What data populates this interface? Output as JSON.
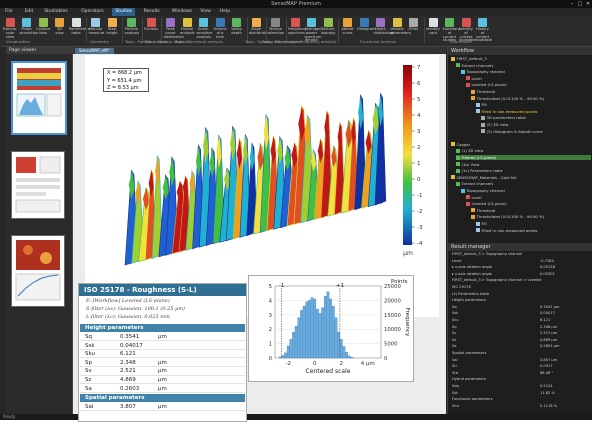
{
  "window": {
    "title": "SensoMAP Premium"
  },
  "menu": [
    "File",
    "Edit",
    "Studiables",
    "Operators",
    "Studies",
    "Results",
    "Windows",
    "View",
    "Help"
  ],
  "menu_active_index": 4,
  "ribbon": {
    "buttons": [
      {
        "label": "Pseudo-color view",
        "color": "#d9534f"
      },
      {
        "label": "Photo simulation",
        "color": "#5bc0de"
      },
      {
        "label": "Contour lines",
        "color": "#8fbf4f"
      },
      {
        "label": "3D view",
        "color": "#e6a23c"
      },
      {
        "label": "Parameters table",
        "color": "#e0e0e0"
      },
      {
        "label": "Manual measure",
        "color": "#9ec9e8"
      },
      {
        "label": "Step height",
        "color": "#f0ad4e"
      },
      {
        "label": "Particle analysis",
        "color": "#5cb85c"
      },
      {
        "label": "Furrows",
        "color": "#d9534f"
      },
      {
        "label": "Peak count distribution",
        "color": "#9b6fc6"
      },
      {
        "label": "Fractal analysis",
        "color": "#e0c040"
      },
      {
        "label": "Scale-sensitive analysis",
        "color": "#5bc0de"
      },
      {
        "label": "Volume of a hole",
        "color": "#337ab7"
      },
      {
        "label": "Valley depth",
        "color": "#5cb85c"
      },
      {
        "label": "Slope distribution",
        "color": "#f0ad4e"
      },
      {
        "label": "Texture direction",
        "color": "#888888"
      },
      {
        "label": "Frequency spectrum",
        "color": "#d9534f"
      },
      {
        "label": "Averaged power spectrum density",
        "color": "#5bc0de"
      },
      {
        "label": "Texture isotropy",
        "color": "#8fbf4f"
      },
      {
        "label": "Abbott curve",
        "color": "#e6a23c"
      },
      {
        "label": "Histogram",
        "color": "#337ab7"
      },
      {
        "label": "Depth distribution",
        "color": "#9b6fc6"
      },
      {
        "label": "Volume parameters",
        "color": "#e0c040"
      },
      {
        "label": "Other",
        "color": "#aaaaaa"
      },
      {
        "label": "Identity card",
        "color": "#e0e0e0"
      },
      {
        "label": "Summary of current studies",
        "color": "#5cb85c"
      },
      {
        "label": "Identity of current studiable",
        "color": "#d9534f"
      },
      {
        "label": "History of current studiable",
        "color": "#5bc0de"
      }
    ],
    "groups": [
      "Visualization",
      "Geometry",
      "Topo - Particle analysis",
      "Topo - Contour analysis",
      "Topo - Structural analysis",
      "Topo - Spacing ratio analysis",
      "Topo - Slope analysis",
      "Frequency analysis",
      "Functional analysis",
      "Information"
    ]
  },
  "page_viewer": {
    "title": "Page viewer"
  },
  "workspace": {
    "tabs": [
      "SensoMAP_eM*"
    ],
    "readout": {
      "x": "X = 868.2 µm",
      "y": "Y = 651.4 µm",
      "z": "Z = 8.53 µm"
    },
    "colorbar": {
      "unit": "µm",
      "ticks": [
        "7",
        "6",
        "5",
        "4",
        "3",
        "2",
        "1",
        "0",
        "-1",
        "-2",
        "-3",
        "-4"
      ]
    }
  },
  "iso_card": {
    "title": "ISO 25178 - Roughness (S-L)",
    "lines": [
      "F: [Workflow] Leveled (LS-plane)",
      "S-filter (λs): Gaussian, 100:1 (0.25 µm)",
      "L-filter (λc): Gaussian, 0.025 mm"
    ],
    "height_section": "Height parameters",
    "height_params": [
      {
        "name": "Sq",
        "value": "0.3541",
        "unit": "µm"
      },
      {
        "name": "Ssk",
        "value": "0.04017",
        "unit": ""
      },
      {
        "name": "Sku",
        "value": "6.121",
        "unit": ""
      },
      {
        "name": "Sp",
        "value": "2.348",
        "unit": "µm"
      },
      {
        "name": "Sv",
        "value": "2.521",
        "unit": "µm"
      },
      {
        "name": "Sz",
        "value": "4.869",
        "unit": "µm"
      },
      {
        "name": "Sa",
        "value": "0.2603",
        "unit": "µm"
      }
    ],
    "spatial_section": "Spatial parameters",
    "spatial_params": [
      {
        "name": "Sal",
        "value": "3.807",
        "unit": "µm"
      }
    ]
  },
  "histogram": {
    "title_right": "Points",
    "xlabel": "Centered scale",
    "ylabel": "Frequency",
    "ylabel_right": "Points",
    "marker_left": "-1",
    "marker_right": "+1",
    "x_ticks": [
      "-2",
      "0",
      "2",
      "4 µm"
    ],
    "y_ticks_right": [
      "25000",
      "20000",
      "15000",
      "10000",
      "5000",
      "0"
    ],
    "y_ticks_left": [
      "5",
      "4",
      "3",
      "2",
      "1",
      "0"
    ],
    "chart_data": {
      "type": "bar",
      "x_range": [
        -3,
        5
      ],
      "x": [
        -2.6,
        -2.4,
        -2.2,
        -2.0,
        -1.8,
        -1.6,
        -1.4,
        -1.2,
        -1.0,
        -0.8,
        -0.6,
        -0.4,
        -0.2,
        0.0,
        0.2,
        0.4,
        0.6,
        0.8,
        1.0,
        1.2,
        1.4,
        1.6,
        1.8,
        2.0,
        2.2,
        2.4,
        2.6,
        2.8
      ],
      "values": [
        400,
        900,
        1800,
        4200,
        6500,
        9000,
        11000,
        14000,
        16500,
        18000,
        19500,
        20000,
        21000,
        20500,
        17000,
        15500,
        17500,
        21500,
        23000,
        20500,
        18000,
        14000,
        9000,
        6500,
        4000,
        2000,
        800,
        300
      ],
      "ylim": [
        0,
        25000
      ]
    }
  },
  "workflow": {
    "title": "Workflow",
    "rows": [
      {
        "text": "FIRST_default_3",
        "depth": 0,
        "kind": "normal"
      },
      {
        "text": "Extract channels",
        "depth": 1,
        "kind": "normal"
      },
      {
        "text": "Topography channel",
        "depth": 2,
        "kind": "normal"
      },
      {
        "text": "Level",
        "depth": 3,
        "kind": "normal"
      },
      {
        "text": "Leveled (LS-plane)",
        "depth": 3,
        "kind": "normal"
      },
      {
        "text": "Threshold",
        "depth": 4,
        "kind": "normal"
      },
      {
        "text": "Thresholded (0.01100 % - 99.00 %)",
        "depth": 4,
        "kind": "normal"
      },
      {
        "text": "Fill",
        "depth": 5,
        "kind": "normal"
      },
      {
        "text": "Filled in non-measured points",
        "depth": 5,
        "kind": "yellow"
      },
      {
        "text": "3D parameters table",
        "depth": 6,
        "kind": "normal"
      },
      {
        "text": "(2) 3D view",
        "depth": 6,
        "kind": "normal"
      },
      {
        "text": "(3) Histogram & Abbott curve",
        "depth": 6,
        "kind": "normal"
      },
      {
        "text": "",
        "depth": 0,
        "kind": "normal"
      },
      {
        "text": "Copper",
        "depth": 0,
        "kind": "normal"
      },
      {
        "text": "(1) 3D view",
        "depth": 1,
        "kind": "normal"
      },
      {
        "text": "Filtered (LS-plane)",
        "depth": 1,
        "kind": "highlight"
      },
      {
        "text": "(1b) View",
        "depth": 1,
        "kind": "normal"
      },
      {
        "text": "(1c) Parameters table",
        "depth": 1,
        "kind": "normal"
      },
      {
        "text": "SENSOMAP_Materials - Gold foil",
        "depth": 0,
        "kind": "normal"
      },
      {
        "text": "Extract channels",
        "depth": 1,
        "kind": "normal"
      },
      {
        "text": "Topography channel",
        "depth": 2,
        "kind": "normal"
      },
      {
        "text": "Level",
        "depth": 3,
        "kind": "normal"
      },
      {
        "text": "Leveled (LS-plane)",
        "depth": 3,
        "kind": "normal"
      },
      {
        "text": "Threshold",
        "depth": 4,
        "kind": "normal"
      },
      {
        "text": "Thresholded (0.01100 % - 99.00 %)",
        "depth": 4,
        "kind": "normal"
      },
      {
        "text": "Fill",
        "depth": 5,
        "kind": "normal"
      },
      {
        "text": "Filled in non-measured points",
        "depth": 5,
        "kind": "normal"
      }
    ]
  },
  "result_manager": {
    "title": "Result manager",
    "rows": [
      {
        "name": "FIRST_default_3 > Topography channel",
        "value": ""
      },
      {
        "name": "Level",
        "value": "-0.7384"
      },
      {
        "name": "▸ x-axis rotation angle",
        "value": "0.00158"
      },
      {
        "name": "▸ y-axis rotation angle",
        "value": "0.00301"
      },
      {
        "name": "FIRST_default_3 > Topography channel > Leveled",
        "value": ""
      },
      {
        "name": "ISO 25178",
        "value": ""
      },
      {
        "name": "(4) Parameters table",
        "value": ""
      },
      {
        "name": "Height parameters",
        "value": ""
      },
      {
        "name": "Sq",
        "value": "0.3541 µm"
      },
      {
        "name": "Ssk",
        "value": "0.04017"
      },
      {
        "name": "Sku",
        "value": "6.121"
      },
      {
        "name": "Sp",
        "value": "2.348 µm"
      },
      {
        "name": "Sv",
        "value": "2.521 µm"
      },
      {
        "name": "Sz",
        "value": "4.869 µm"
      },
      {
        "name": "Sa",
        "value": "0.2603 µm"
      },
      {
        "name": "Spatial parameters",
        "value": ""
      },
      {
        "name": "Sal",
        "value": "3.807 µm"
      },
      {
        "name": "Str",
        "value": "0.0917"
      },
      {
        "name": "Std",
        "value": "88.48 °"
      },
      {
        "name": "Hybrid parameters",
        "value": ""
      },
      {
        "name": "Sdq",
        "value": "0.5124"
      },
      {
        "name": "Sdr",
        "value": "11.82 %"
      },
      {
        "name": "Functional parameters",
        "value": ""
      },
      {
        "name": "Smr",
        "value": "0.1118 %"
      }
    ]
  },
  "statusbar": {
    "text": "Ready"
  },
  "colors": {
    "accent": "#2c5f8a",
    "card_header": "#2f6f93",
    "bars": "#6aaee0"
  }
}
